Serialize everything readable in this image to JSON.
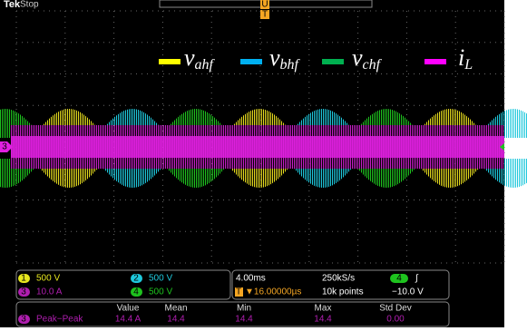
{
  "header": {
    "brand": "Tek",
    "status": "Stop"
  },
  "legend": [
    {
      "symbol": "v",
      "subscript": "ahf"
    },
    {
      "symbol": "v",
      "subscript": "bhf"
    },
    {
      "symbol": "v",
      "subscript": "chf"
    },
    {
      "symbol": "i",
      "subscript": "L"
    }
  ],
  "markers": {
    "trigger_position": "U",
    "trigger": "T",
    "left_channel": "3"
  },
  "channels": [
    {
      "number": "1",
      "scale": "500 V"
    },
    {
      "number": "2",
      "scale": "500 V"
    },
    {
      "number": "3",
      "scale": "10.0 A"
    },
    {
      "number": "4",
      "scale": "500 V"
    }
  ],
  "timebase": {
    "scale": "4.00ms",
    "sample_rate": "250kS/s",
    "trigger_delay": "▼16.00000µs",
    "record_length": "10k points",
    "trigger_source": "4",
    "trigger_slope": "∫",
    "trigger_level": "−10.0 V"
  },
  "measurements": {
    "headers": [
      "Value",
      "Mean",
      "Min",
      "Max",
      "Std Dev"
    ],
    "rows": [
      {
        "channel": "3",
        "name": "Peak−Peak",
        "values": [
          "14.4 A",
          "14.4",
          "14.4",
          "14.4",
          "0.00"
        ]
      }
    ]
  }
}
